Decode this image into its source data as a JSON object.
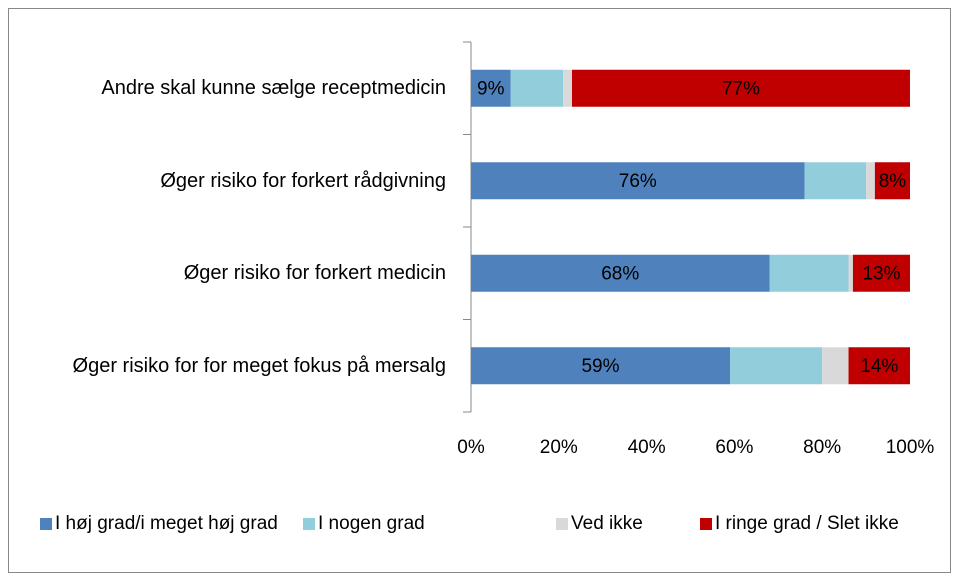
{
  "chart_data": {
    "type": "stacked_barh",
    "categories": [
      "Andre skal kunne sælge receptmedicin",
      "Øger risiko for forkert rådgivning",
      "Øger risiko for forkert medicin",
      "Øger risiko for for meget fokus på mersalg"
    ],
    "series": [
      {
        "name": "I høj grad/i meget høj grad",
        "color": "#4f81bd",
        "values": [
          9,
          76,
          68,
          59
        ],
        "value_labels": [
          "9%",
          "76%",
          "68%",
          "59%"
        ]
      },
      {
        "name": "I nogen grad",
        "color": "#92cddc",
        "values": [
          12,
          14,
          18,
          21
        ]
      },
      {
        "name": "Ved ikke",
        "color": "#d9d9d9",
        "values": [
          2,
          2,
          1,
          6
        ]
      },
      {
        "name": "I ringe grad / Slet ikke",
        "color": "#c00000",
        "values": [
          77,
          8,
          13,
          14
        ],
        "value_labels": [
          "77%",
          "8%",
          "13%",
          "14%"
        ]
      }
    ],
    "xlim": [
      0,
      100
    ],
    "xticks": [
      {
        "value": 0,
        "label": "0%"
      },
      {
        "value": 20,
        "label": "20%"
      },
      {
        "value": 40,
        "label": "40%"
      },
      {
        "value": 60,
        "label": "60%"
      },
      {
        "value": 80,
        "label": "80%"
      },
      {
        "value": 100,
        "label": "100%"
      }
    ],
    "legend": "bottom"
  }
}
